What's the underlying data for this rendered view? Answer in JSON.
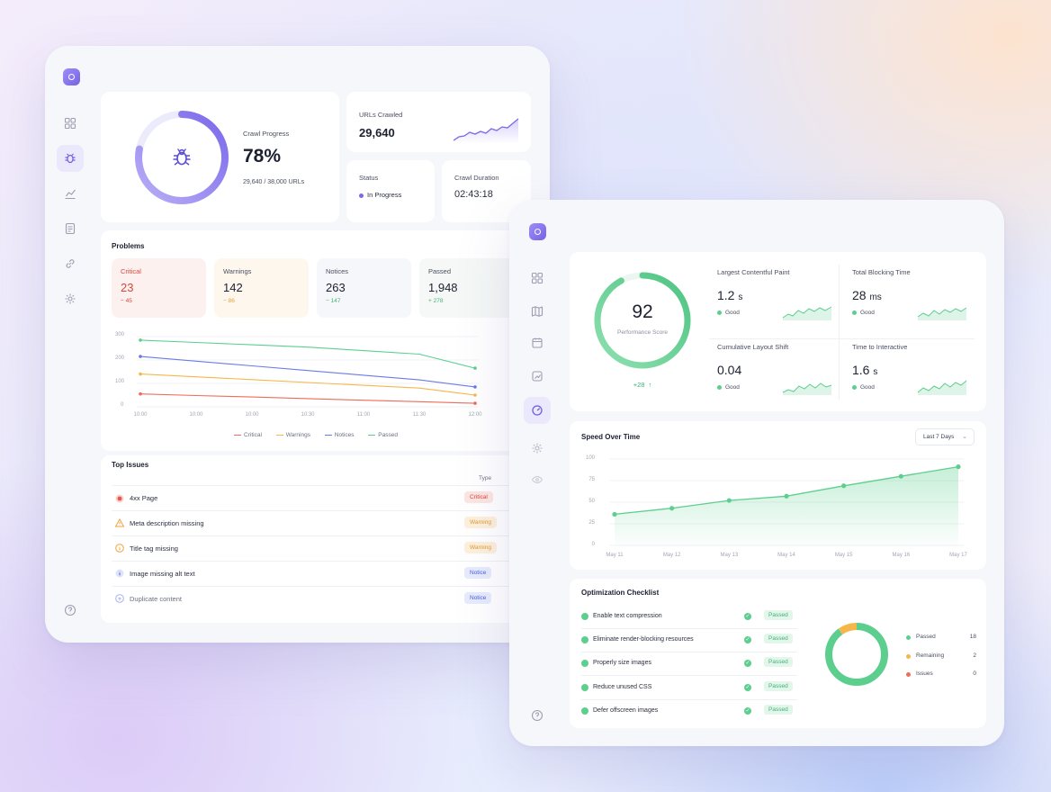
{
  "crawler": {
    "crawl_progress": {
      "label": "Crawl Progress",
      "percent_text": "78%",
      "percent": 78,
      "detail": "29,640 / 38,000 URLs"
    },
    "urls_crawled": {
      "label": "URLs Crawled",
      "value": "29,640"
    },
    "status": {
      "label": "Status",
      "value": "In Progress"
    },
    "crawl_duration": {
      "label": "Crawl Duration",
      "value": "02:43:18"
    },
    "problems": {
      "title": "Problems",
      "cards": [
        {
          "label": "Critical",
          "value": "23",
          "delta": "− 45"
        },
        {
          "label": "Warnings",
          "value": "142",
          "delta": "− 86"
        },
        {
          "label": "Notices",
          "value": "263",
          "delta": "− 147"
        },
        {
          "label": "Passed",
          "value": "1,948",
          "delta": "+ 278"
        }
      ],
      "chart_data": {
        "type": "line",
        "x": [
          "10:00",
          "10:00",
          "10:00",
          "10:30",
          "11:00",
          "11:30",
          "12:00"
        ],
        "x_tick_labels": [
          "10:00",
          "10:00",
          "10:00",
          "10:30",
          "11:00",
          "11:30",
          "12:00"
        ],
        "y_ticks": [
          "300",
          "200",
          "100",
          "0"
        ],
        "ylim": [
          0,
          300
        ],
        "series": [
          {
            "name": "Critical",
            "color": "#ef6b5b",
            "values": [
              55,
              48,
              42,
              35,
              28,
              22,
              15
            ]
          },
          {
            "name": "Warnings",
            "color": "#f6b74a",
            "values": [
              140,
              128,
              116,
              104,
              92,
              80,
              50
            ]
          },
          {
            "name": "Notices",
            "color": "#6a7be8",
            "values": [
              215,
              195,
              175,
              155,
              135,
              115,
              85
            ]
          },
          {
            "name": "Passed",
            "color": "#5ccf8e",
            "values": [
              285,
              275,
              265,
              255,
              240,
              225,
              165
            ]
          }
        ],
        "legend_position": "bottom"
      }
    },
    "top_issues": {
      "title": "Top Issues",
      "col_type": "Type",
      "rows": [
        {
          "icon": "critical-icon",
          "name": "4xx Page",
          "type": "Critical"
        },
        {
          "icon": "warning-icon",
          "name": "Meta description missing",
          "type": "Warning"
        },
        {
          "icon": "info-icon",
          "name": "Title tag missing",
          "type": "Warning"
        },
        {
          "icon": "notice-icon",
          "name": "Image missing alt text",
          "type": "Notice"
        },
        {
          "icon": "duplicate-icon",
          "name": "Duplicate content",
          "type": "Notice"
        }
      ]
    }
  },
  "performance": {
    "score": {
      "value": "92",
      "label": "Performance Score",
      "delta": "+28"
    },
    "metrics": [
      {
        "label": "Largest Contentful Paint",
        "value": "1.2",
        "unit": "s",
        "status": "Good"
      },
      {
        "label": "Total Blocking Time",
        "value": "28",
        "unit": "ms",
        "status": "Good"
      },
      {
        "label": "Cumulative Layout Shift",
        "value": "0.04",
        "unit": "",
        "status": "Good"
      },
      {
        "label": "Time to Interactive",
        "value": "1.6",
        "unit": "s",
        "status": "Good"
      }
    ],
    "speed": {
      "title": "Speed Over Time",
      "range": "Last 7 Days",
      "chart_data": {
        "type": "area",
        "x": [
          "May 11",
          "May 12",
          "May 13",
          "May 14",
          "May 15",
          "May 16",
          "May 17"
        ],
        "series": [
          {
            "values": [
              36,
              43,
              52,
              57,
              69,
              80,
              91
            ]
          }
        ],
        "y_ticks": [
          "100",
          "75",
          "50",
          "25",
          "0"
        ],
        "ylim": [
          0,
          100
        ],
        "color": "#5ccf8e"
      }
    },
    "checklist": {
      "title": "Optimization Checklist",
      "items": [
        {
          "label": "Enable text compression",
          "status": "Passed"
        },
        {
          "label": "Eliminate render-blocking resources",
          "status": "Passed"
        },
        {
          "label": "Properly size images",
          "status": "Passed"
        },
        {
          "label": "Reduce unused CSS",
          "status": "Passed"
        },
        {
          "label": "Defer offscreen images",
          "status": "Passed"
        }
      ],
      "chart_data": {
        "type": "pie",
        "labels": [
          "Passed",
          "Remaining",
          "Issues"
        ],
        "values": [
          18,
          2,
          0
        ],
        "value_labels": [
          "18",
          "2",
          "0"
        ],
        "colors": [
          "#5ccf8e",
          "#f6b74a",
          "#ef6b5b"
        ]
      }
    }
  }
}
